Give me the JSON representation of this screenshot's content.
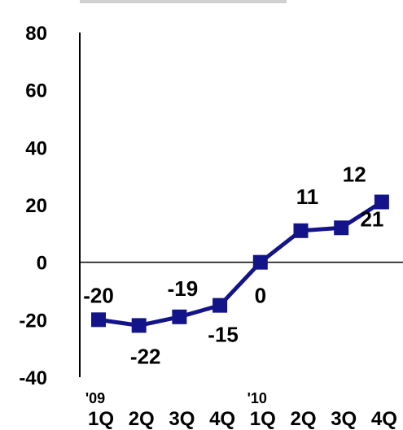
{
  "chart_data": {
    "type": "line",
    "categories": [
      "1Q",
      "2Q",
      "3Q",
      "4Q",
      "1Q",
      "2Q",
      "3Q",
      "4Q"
    ],
    "year_markers": [
      {
        "index": 0,
        "label": "'09"
      },
      {
        "index": 4,
        "label": "'10"
      }
    ],
    "series": [
      {
        "values": [
          -20,
          -22,
          -19,
          -15,
          0,
          11,
          12,
          21
        ],
        "color": "#14148a"
      }
    ],
    "data_labels": [
      "-20",
      "-22",
      "-19",
      "-15",
      "0",
      "11",
      "12",
      "21"
    ],
    "ylim": [
      -40,
      80
    ],
    "yticks": [
      80,
      60,
      40,
      20,
      0,
      -20,
      -40
    ],
    "marker": "square",
    "grid": false,
    "legend": "none",
    "title": "",
    "xlabel": "",
    "ylabel": ""
  }
}
